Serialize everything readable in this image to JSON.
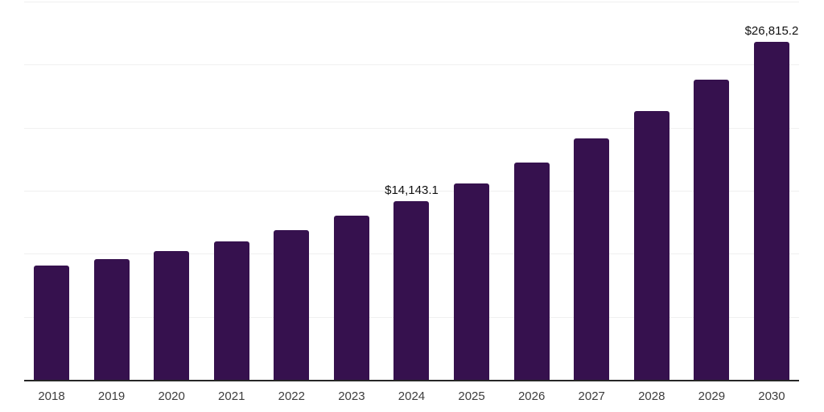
{
  "chart_data": {
    "type": "bar",
    "title": "",
    "xlabel": "",
    "ylabel": "",
    "legend_position": "none",
    "grid": true,
    "ylim": [
      0,
      30000
    ],
    "gridline_interval": 5000,
    "categories": [
      "2018",
      "2019",
      "2020",
      "2021",
      "2022",
      "2023",
      "2024",
      "2025",
      "2026",
      "2027",
      "2028",
      "2029",
      "2030"
    ],
    "values": [
      9090,
      9580,
      10230,
      10980,
      11870,
      13030,
      14143.1,
      15570,
      17230,
      19130,
      21290,
      23840,
      26815.2
    ],
    "bar_labels": [
      "",
      "",
      "",
      "",
      "",
      "",
      "$14,143.1",
      "",
      "",
      "",
      "",
      "",
      "$26,815.2"
    ],
    "colors": {
      "bar": "#36114E",
      "axis_line": "#262626",
      "gridline": "#f0f0f0",
      "bar_label_text": "#111111",
      "tick_label_text": "#3d3d3d",
      "background": "#ffffff"
    }
  }
}
